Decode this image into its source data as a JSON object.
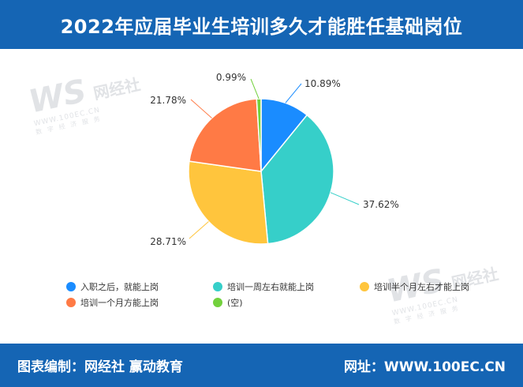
{
  "header": {
    "title": "2022年应届毕业生培训多久才能胜任基础岗位"
  },
  "watermark": {
    "brand": "网经社",
    "url": "WWW.100EC.CN",
    "sub": "数字经济服务"
  },
  "footer": {
    "left": "图表编制：网经社 赢动教育",
    "right": "网址：WWW.100EC.CN"
  },
  "chart_data": {
    "type": "pie",
    "title": "2022年应届毕业生培训多久才能胜任基础岗位",
    "slices": [
      {
        "label": "入职之后，就能上岗",
        "value": 10.89,
        "display": "10.89%",
        "color": "#1a8cff"
      },
      {
        "label": "培训一周左右就能上岗",
        "value": 37.62,
        "display": "37.62%",
        "color": "#36cfc9"
      },
      {
        "label": "培训半个月左右才能上岗",
        "value": 28.71,
        "display": "28.71%",
        "color": "#ffc53d"
      },
      {
        "label": "培训一个月方能上岗",
        "value": 21.78,
        "display": "21.78%",
        "color": "#ff7a45"
      },
      {
        "label": "(空)",
        "value": 0.99,
        "display": "0.99%",
        "color": "#73d13d"
      }
    ],
    "legend_position": "bottom"
  }
}
